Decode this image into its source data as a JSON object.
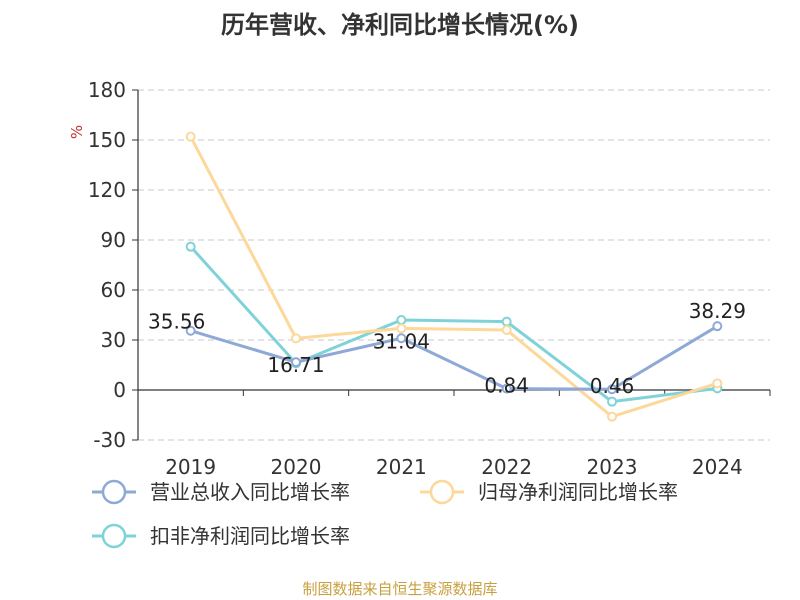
{
  "chart_data": {
    "type": "line",
    "title": "历年营收、净利同比增长情况(%)",
    "y_unit": "%",
    "categories": [
      "2019",
      "2020",
      "2021",
      "2022",
      "2023",
      "2024"
    ],
    "ylim": [
      -30,
      180
    ],
    "yticks": [
      -30,
      0,
      30,
      60,
      90,
      120,
      150,
      180
    ],
    "grid": true,
    "legend_position": "bottom",
    "series": [
      {
        "name": "营业总收入同比增长率",
        "color": "#8ea9d6",
        "values": [
          35.56,
          16.71,
          31.04,
          0.84,
          0.46,
          38.29
        ],
        "labels": [
          "35.56",
          "16.71",
          "31.04",
          "0.84",
          "0.46",
          "38.29"
        ]
      },
      {
        "name": "归母净利润同比增长率",
        "color": "#fcd89a",
        "values": [
          152,
          31,
          37,
          36,
          -16,
          4
        ]
      },
      {
        "name": "扣非净利润同比增长率",
        "color": "#7fd3d8",
        "values": [
          86,
          16,
          42,
          41,
          -7,
          1
        ]
      }
    ]
  },
  "footer": {
    "source": "制图数据来自恒生聚源数据库"
  }
}
